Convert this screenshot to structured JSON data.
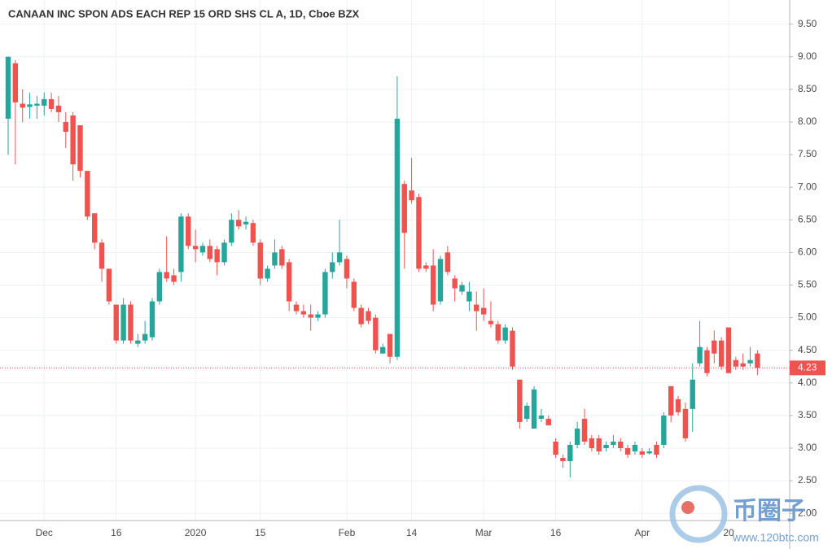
{
  "chart_data": {
    "type": "candlestick",
    "title": "CANAAN INC SPON ADS EACH REP 15 ORD SHS CL A, 1D, Cboe BZX",
    "up_color": "#26a69a",
    "down_color": "#ef5350",
    "grid": true,
    "categories": [
      null,
      null,
      null,
      null,
      null,
      "Dec",
      null,
      null,
      null,
      null,
      null,
      null,
      null,
      null,
      null,
      "16",
      null,
      null,
      null,
      null,
      null,
      null,
      null,
      null,
      null,
      null,
      "2020",
      null,
      null,
      null,
      null,
      null,
      null,
      null,
      null,
      "15",
      null,
      null,
      null,
      null,
      null,
      null,
      null,
      null,
      null,
      null,
      null,
      "Feb",
      null,
      null,
      null,
      null,
      null,
      null,
      null,
      null,
      "14",
      null,
      null,
      null,
      null,
      null,
      null,
      null,
      null,
      null,
      "Mar",
      null,
      null,
      null,
      null,
      null,
      null,
      null,
      null,
      null,
      "16",
      null,
      null,
      null,
      null,
      null,
      null,
      null,
      null,
      null,
      null,
      null,
      "Apr",
      null,
      null,
      null,
      null,
      null,
      null,
      null,
      null,
      null,
      null,
      null,
      "20",
      null,
      null,
      null,
      null
    ],
    "series": [
      {
        "name": "open",
        "values": [
          8.05,
          8.9,
          8.28,
          8.23,
          8.25,
          8.25,
          8.35,
          8.25,
          8.0,
          8.1,
          7.95,
          7.25,
          6.6,
          6.15,
          5.75,
          5.2,
          4.65,
          5.2,
          4.6,
          4.65,
          4.7,
          5.25,
          5.7,
          5.65,
          5.7,
          6.55,
          6.1,
          6.0,
          6.1,
          6.05,
          5.85,
          6.15,
          6.5,
          6.43,
          6.45,
          6.15,
          5.6,
          5.8,
          6.05,
          5.85,
          5.2,
          5.1,
          5.05,
          5.0,
          5.05,
          5.7,
          5.85,
          5.9,
          5.55,
          5.15,
          5.1,
          5.0,
          4.45,
          4.75,
          4.4,
          7.05,
          6.95,
          6.85,
          5.8,
          5.8,
          5.25,
          6.0,
          5.6,
          5.4,
          5.25,
          5.2,
          5.15,
          4.95,
          4.9,
          4.65,
          4.8,
          4.05,
          3.45,
          3.3,
          3.45,
          3.45,
          3.1,
          2.85,
          2.8,
          3.05,
          3.45,
          3.15,
          3.15,
          3.0,
          3.05,
          3.1,
          3.0,
          2.95,
          2.95,
          2.92,
          3.05,
          3.05,
          3.95,
          3.75,
          3.6,
          3.6,
          4.3,
          4.5,
          4.65,
          4.65,
          4.85,
          4.35,
          4.3,
          4.3,
          4.45
        ]
      },
      {
        "name": "high",
        "values": [
          9.0,
          8.95,
          8.5,
          8.45,
          8.4,
          8.45,
          8.45,
          8.4,
          8.15,
          8.15,
          7.95,
          7.25,
          6.6,
          6.2,
          5.75,
          5.2,
          5.3,
          5.25,
          4.75,
          4.95,
          5.3,
          5.75,
          6.25,
          5.75,
          6.6,
          6.6,
          6.35,
          6.15,
          6.2,
          6.1,
          6.2,
          6.6,
          6.65,
          6.55,
          6.5,
          6.2,
          5.8,
          6.2,
          6.1,
          5.9,
          5.25,
          5.2,
          5.2,
          5.1,
          5.75,
          6.0,
          6.5,
          5.95,
          5.6,
          5.2,
          5.15,
          5.05,
          4.6,
          4.75,
          8.7,
          7.1,
          7.45,
          6.9,
          5.85,
          6.05,
          5.95,
          6.1,
          5.65,
          5.55,
          5.55,
          5.4,
          5.45,
          5.25,
          4.95,
          4.9,
          4.85,
          4.05,
          3.7,
          3.95,
          3.6,
          3.5,
          3.15,
          2.9,
          3.1,
          3.4,
          3.6,
          3.2,
          3.2,
          3.1,
          3.2,
          3.15,
          3.05,
          3.1,
          3.0,
          3.0,
          3.1,
          3.55,
          3.95,
          3.8,
          3.7,
          4.3,
          4.95,
          4.55,
          4.8,
          4.7,
          4.85,
          4.4,
          4.45,
          4.55,
          4.5
        ]
      },
      {
        "name": "low",
        "values": [
          7.5,
          7.35,
          8.0,
          8.05,
          8.05,
          8.1,
          8.15,
          8.0,
          7.6,
          7.1,
          7.15,
          6.5,
          6.05,
          5.55,
          5.2,
          4.6,
          4.6,
          4.6,
          4.55,
          4.6,
          4.65,
          5.2,
          5.55,
          5.5,
          5.55,
          6.05,
          5.85,
          5.95,
          5.85,
          5.65,
          5.8,
          6.1,
          6.35,
          6.35,
          6.1,
          5.5,
          5.55,
          5.75,
          5.75,
          5.1,
          5.05,
          5.0,
          4.8,
          4.95,
          5.0,
          5.6,
          5.8,
          5.45,
          5.1,
          4.85,
          4.9,
          4.45,
          4.45,
          4.3,
          4.35,
          5.75,
          6.75,
          5.7,
          5.7,
          5.1,
          5.2,
          5.65,
          5.25,
          5.35,
          5.1,
          4.8,
          4.95,
          4.85,
          4.6,
          4.6,
          4.2,
          3.3,
          3.4,
          3.3,
          3.4,
          3.35,
          2.85,
          2.7,
          2.55,
          3.0,
          3.05,
          2.95,
          2.9,
          2.95,
          3.0,
          2.95,
          2.85,
          2.9,
          2.85,
          2.9,
          2.85,
          3.0,
          3.4,
          3.5,
          3.1,
          3.25,
          4.25,
          4.1,
          4.3,
          4.2,
          4.15,
          4.2,
          4.2,
          4.25,
          4.12
        ]
      },
      {
        "name": "close",
        "values": [
          9.0,
          8.3,
          8.22,
          8.27,
          8.28,
          8.35,
          8.2,
          8.15,
          7.85,
          7.35,
          7.25,
          6.55,
          6.15,
          5.75,
          5.25,
          4.65,
          5.2,
          4.65,
          4.65,
          4.75,
          5.25,
          5.7,
          5.6,
          5.55,
          6.55,
          6.1,
          6.05,
          6.1,
          5.9,
          5.85,
          6.15,
          6.5,
          6.4,
          6.47,
          6.15,
          5.6,
          5.75,
          6.0,
          5.8,
          5.25,
          5.1,
          5.05,
          5.0,
          5.05,
          5.7,
          5.85,
          6.0,
          5.6,
          5.15,
          4.9,
          4.95,
          4.5,
          4.55,
          4.4,
          8.05,
          6.3,
          6.8,
          5.75,
          5.75,
          5.2,
          5.9,
          5.7,
          5.45,
          5.5,
          5.4,
          5.1,
          5.05,
          4.9,
          4.65,
          4.85,
          4.25,
          3.4,
          3.65,
          3.9,
          3.5,
          3.35,
          2.9,
          2.8,
          3.05,
          3.3,
          3.1,
          3.0,
          2.95,
          3.05,
          3.1,
          3.0,
          2.9,
          3.05,
          2.9,
          2.95,
          2.9,
          3.5,
          3.5,
          3.55,
          3.15,
          4.05,
          4.55,
          4.15,
          4.45,
          4.25,
          4.15,
          4.25,
          4.25,
          4.35,
          4.23
        ]
      }
    ],
    "last_price": 4.23,
    "ylim": [
      1.89,
      9.87
    ],
    "yticks": [
      {
        "value": 2,
        "label": "2.00"
      },
      {
        "value": 2.5,
        "label": "2.50"
      },
      {
        "value": 3,
        "label": "3.00"
      },
      {
        "value": 3.5,
        "label": "3.50"
      },
      {
        "value": 4,
        "label": "4.00"
      },
      {
        "value": 4.5,
        "label": "4.50"
      },
      {
        "value": 5,
        "label": "5.00"
      },
      {
        "value": 5.5,
        "label": "5.50"
      },
      {
        "value": 6,
        "label": "6.00"
      },
      {
        "value": 6.5,
        "label": "6.50"
      },
      {
        "value": 7,
        "label": "7.00"
      },
      {
        "value": 7.5,
        "label": "7.50"
      },
      {
        "value": 8,
        "label": "8.00"
      },
      {
        "value": 8.5,
        "label": "8.50"
      },
      {
        "value": 9,
        "label": "9.00"
      },
      {
        "value": 9.5,
        "label": "9.50"
      }
    ]
  },
  "watermark": {
    "brand": "币圈子",
    "url": "www.120btc.com"
  }
}
